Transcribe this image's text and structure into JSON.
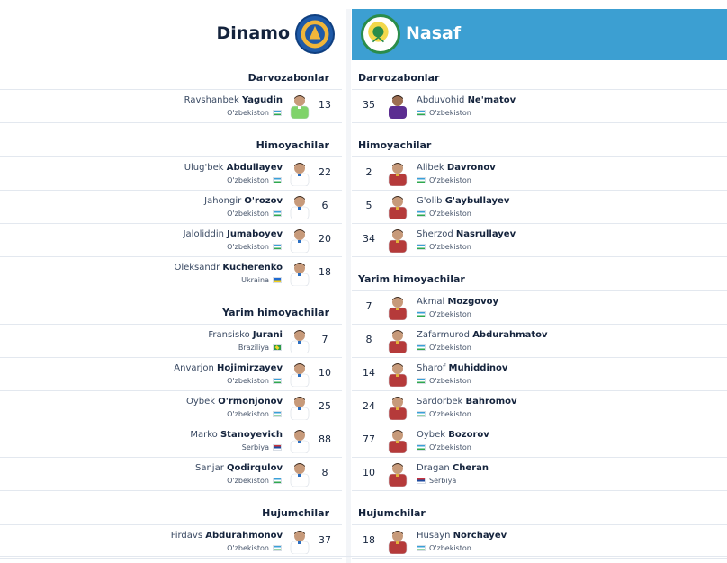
{
  "home": {
    "name": "Dinamo",
    "logo_icon": "dinamo-crest-icon",
    "sections": [
      {
        "title": "Darvozabonlar",
        "players": [
          {
            "first": "Ravshanbek",
            "last": "Yagudin",
            "number": "13",
            "country": "O'zbekiston",
            "flag": "uz",
            "kit": "gk"
          }
        ]
      },
      {
        "title": "Himoyachilar",
        "players": [
          {
            "first": "Ulug'bek",
            "last": "Abdullayev",
            "number": "22",
            "country": "O'zbekiston",
            "flag": "uz",
            "kit": "white"
          },
          {
            "first": "Jahongir",
            "last": "O'rozov",
            "number": "6",
            "country": "O'zbekiston",
            "flag": "uz",
            "kit": "white"
          },
          {
            "first": "Jaloliddin",
            "last": "Jumaboyev",
            "number": "20",
            "country": "O'zbekiston",
            "flag": "uz",
            "kit": "white"
          },
          {
            "first": "Oleksandr",
            "last": "Kucherenko",
            "number": "18",
            "country": "Ukraina",
            "flag": "ua",
            "kit": "white"
          }
        ]
      },
      {
        "title": "Yarim himoyachilar",
        "players": [
          {
            "first": "Fransisko",
            "last": "Jurani",
            "number": "7",
            "country": "Braziliya",
            "flag": "br",
            "kit": "white"
          },
          {
            "first": "Anvarjon",
            "last": "Hojimirzayev",
            "number": "10",
            "country": "O'zbekiston",
            "flag": "uz",
            "kit": "white"
          },
          {
            "first": "Oybek",
            "last": "O'rmonjonov",
            "number": "25",
            "country": "O'zbekiston",
            "flag": "uz",
            "kit": "white"
          },
          {
            "first": "Marko",
            "last": "Stanoyevich",
            "number": "88",
            "country": "Serbiya",
            "flag": "rs",
            "kit": "white"
          },
          {
            "first": "Sanjar",
            "last": "Qodirqulov",
            "number": "8",
            "country": "O'zbekiston",
            "flag": "uz",
            "kit": "white"
          }
        ]
      },
      {
        "title": "Hujumchilar",
        "players": [
          {
            "first": "Firdavs",
            "last": "Abdurahmonov",
            "number": "37",
            "country": "O'zbekiston",
            "flag": "uz",
            "kit": "white"
          }
        ]
      }
    ]
  },
  "away": {
    "name": "Nasaf",
    "logo_icon": "nasaf-crest-icon",
    "sections": [
      {
        "title": "Darvozabonlar",
        "players": [
          {
            "first": "Abduvohid",
            "last": "Ne'matov",
            "number": "35",
            "country": "O'zbekiston",
            "flag": "uz",
            "kit": "gk"
          }
        ]
      },
      {
        "title": "Himoyachilar",
        "players": [
          {
            "first": "Alibek",
            "last": "Davronov",
            "number": "2",
            "country": "O'zbekiston",
            "flag": "uz",
            "kit": "red"
          },
          {
            "first": "G'olib",
            "last": "G'aybullayev",
            "number": "5",
            "country": "O'zbekiston",
            "flag": "uz",
            "kit": "red"
          },
          {
            "first": "Sherzod",
            "last": "Nasrullayev",
            "number": "34",
            "country": "O'zbekiston",
            "flag": "uz",
            "kit": "red"
          }
        ]
      },
      {
        "title": "Yarim himoyachilar",
        "players": [
          {
            "first": "Akmal",
            "last": "Mozgovoy",
            "number": "7",
            "country": "O'zbekiston",
            "flag": "uz",
            "kit": "red"
          },
          {
            "first": "Zafarmurod",
            "last": "Abdurahmatov",
            "number": "8",
            "country": "O'zbekiston",
            "flag": "uz",
            "kit": "red"
          },
          {
            "first": "Sharof",
            "last": "Muhiddinov",
            "number": "14",
            "country": "O'zbekiston",
            "flag": "uz",
            "kit": "red"
          },
          {
            "first": "Sardorbek",
            "last": "Bahromov",
            "number": "24",
            "country": "O'zbekiston",
            "flag": "uz",
            "kit": "red"
          },
          {
            "first": "Oybek",
            "last": "Bozorov",
            "number": "77",
            "country": "O'zbekiston",
            "flag": "uz",
            "kit": "red"
          },
          {
            "first": "Dragan",
            "last": "Cheran",
            "number": "10",
            "country": "Serbiya",
            "flag": "rs",
            "kit": "red"
          }
        ]
      },
      {
        "title": "Hujumchilar",
        "players": [
          {
            "first": "Husayn",
            "last": "Norchayev",
            "number": "18",
            "country": "O'zbekiston",
            "flag": "uz",
            "kit": "red"
          }
        ]
      }
    ]
  },
  "colors": {
    "away_header": "#3c9fd2",
    "home_kit": "#ffffff",
    "away_kit": "#b53a3a",
    "home_gk_kit": "#7fd36b",
    "away_gk_kit": "#5b2d91"
  }
}
